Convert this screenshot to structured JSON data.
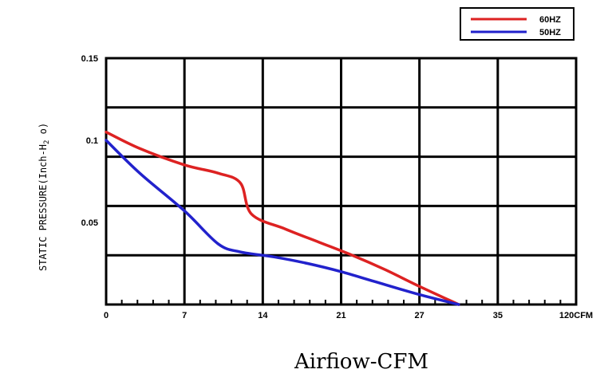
{
  "chart_data": {
    "type": "line",
    "xlabel": "Airfiow-CFM",
    "ylabel": "STATIC PRESSURE(Inch-H",
    "ylabel_sub": "2",
    "ylabel_end": " o)",
    "x_tick_labels": [
      "0",
      "7",
      "14",
      "21",
      "27",
      "35",
      "120CFM"
    ],
    "y_tick_labels": [
      "0.15",
      "0.1",
      "0.05"
    ],
    "y_tick_values": [
      0.15,
      0.1,
      0.05
    ],
    "ylim": [
      0,
      0.15
    ],
    "grid": true,
    "legend_position": "top-right",
    "series": [
      {
        "name": "60HZ",
        "color": "#dd2222",
        "x": [
          0,
          3,
          7,
          10,
          12,
          13,
          16,
          19,
          22,
          25,
          28,
          31.5
        ],
        "y": [
          0.105,
          0.095,
          0.085,
          0.08,
          0.074,
          0.055,
          0.046,
          0.038,
          0.03,
          0.021,
          0.011,
          0
        ]
      },
      {
        "name": "50HZ",
        "color": "#2222cc",
        "x": [
          0,
          3,
          7,
          10,
          12,
          15,
          18,
          21,
          24,
          28,
          31.5
        ],
        "y": [
          0.1,
          0.08,
          0.057,
          0.037,
          0.032,
          0.029,
          0.025,
          0.02,
          0.014,
          0.006,
          0
        ]
      }
    ]
  }
}
